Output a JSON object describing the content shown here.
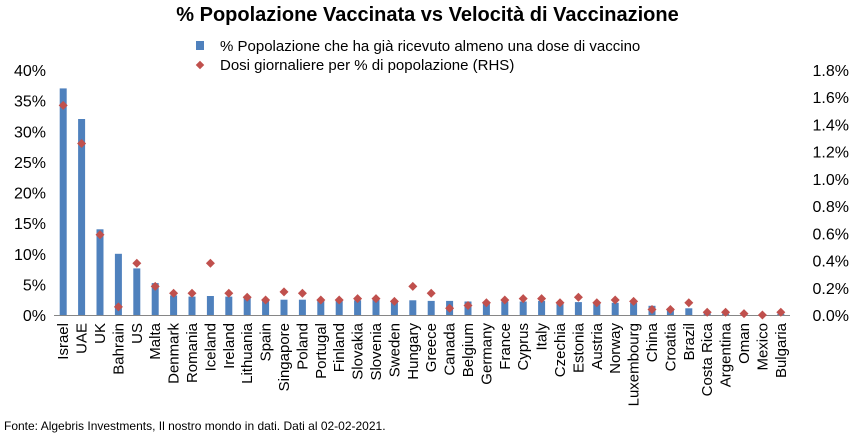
{
  "chart_data": {
    "type": "bar",
    "title": "% Popolazione Vaccinata vs Velocità di Vaccinazione",
    "footnote": "Fonte: Algebris Investments, Il nostro mondo in dati. Dati al 02-02-2021.",
    "categories": [
      "Israel",
      "UAE",
      "UK",
      "Bahrain",
      "US",
      "Malta",
      "Denmark",
      "Romania",
      "Iceland",
      "Ireland",
      "Lithuania",
      "Spain",
      "Singapore",
      "Poland",
      "Portugal",
      "Finland",
      "Slovakia",
      "Slovenia",
      "Sweden",
      "Hungary",
      "Greece",
      "Canada",
      "Belgium",
      "Germany",
      "France",
      "Cyprus",
      "Italy",
      "Czechia",
      "Estonia",
      "Austria",
      "Norway",
      "Luxembourg",
      "China",
      "Croatia",
      "Brazil",
      "Costa Rica",
      "Argentina",
      "Oman",
      "Mexico",
      "Bulgaria"
    ],
    "series": [
      {
        "name": "% Popolazione che ha già ricevuto almeno una dose di vaccino",
        "type": "bar",
        "axis": "left",
        "color": "#4F81BD",
        "values": [
          37.0,
          32.0,
          14.0,
          10.0,
          7.6,
          5.2,
          3.2,
          3.0,
          3.1,
          3.0,
          2.9,
          2.5,
          2.5,
          2.5,
          2.4,
          2.4,
          2.4,
          2.5,
          2.3,
          2.4,
          2.3,
          2.3,
          2.2,
          2.2,
          2.2,
          2.2,
          2.3,
          2.1,
          2.1,
          2.1,
          2.0,
          2.0,
          1.5,
          1.1,
          1.1,
          0.3,
          0.2,
          0.2,
          0.1,
          0.2
        ]
      },
      {
        "name": "Dosi giornaliere per % di popolazione (RHS)",
        "type": "scatter",
        "axis": "right",
        "color": "#C0504D",
        "values": [
          1.54,
          1.26,
          0.59,
          0.06,
          0.38,
          0.21,
          0.16,
          0.16,
          0.38,
          0.16,
          0.13,
          0.11,
          0.17,
          0.16,
          0.11,
          0.11,
          0.12,
          0.12,
          0.1,
          0.21,
          0.16,
          0.05,
          0.07,
          0.09,
          0.11,
          0.12,
          0.12,
          0.09,
          0.13,
          0.09,
          0.11,
          0.1,
          0.04,
          0.04,
          0.09,
          0.02,
          0.02,
          0.01,
          0.0,
          0.02
        ]
      }
    ],
    "ylim": [
      0,
      40
    ],
    "yticks": [
      "0%",
      "5%",
      "10%",
      "15%",
      "20%",
      "25%",
      "30%",
      "35%",
      "40%"
    ],
    "ylim_right": [
      0,
      1.8
    ],
    "yticks_right": [
      "0.0%",
      "0.2%",
      "0.4%",
      "0.6%",
      "0.8%",
      "1.0%",
      "1.2%",
      "1.4%",
      "1.6%",
      "1.8%"
    ],
    "legend_position": "top",
    "grid": false
  }
}
